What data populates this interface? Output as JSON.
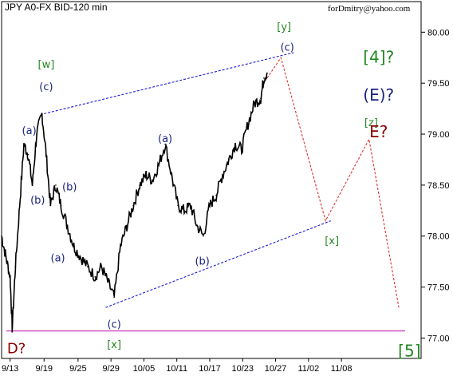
{
  "chart_data": {
    "type": "line",
    "title": "JPY A0-FX BID-120 min",
    "watermark": "forDmitry@yahoo.com",
    "ylim": [
      76.8,
      80.3
    ],
    "y_ticks": [
      "80.00",
      "79.50",
      "79.00",
      "78.50",
      "78.00",
      "77.50",
      "77.00"
    ],
    "y_tick_values": [
      80.0,
      79.5,
      79.0,
      78.5,
      78.0,
      77.5,
      77.0
    ],
    "x_tick_labels": [
      "9/13",
      "9/19",
      "9/25",
      "9/29",
      "10/05",
      "10/11",
      "10/17",
      "10/23",
      "10/27",
      "11/02",
      "11/08"
    ],
    "grid": false,
    "series": [
      {
        "color": "#000000",
        "points": [
          [
            0,
            78.0
          ],
          [
            0.4,
            77.8
          ],
          [
            0.8,
            77.6
          ],
          [
            1.0,
            77.1
          ],
          [
            1.3,
            77.7
          ],
          [
            1.7,
            78.3
          ],
          [
            2.1,
            78.9
          ],
          [
            2.5,
            78.8
          ],
          [
            2.9,
            78.5
          ],
          [
            3.3,
            79.0
          ],
          [
            3.8,
            79.2
          ],
          [
            4.2,
            78.8
          ],
          [
            4.6,
            78.3
          ],
          [
            5.1,
            78.5
          ],
          [
            5.6,
            78.3
          ],
          [
            6.2,
            78.1
          ],
          [
            6.8,
            77.9
          ],
          [
            7.4,
            77.8
          ],
          [
            8.1,
            77.7
          ],
          [
            8.8,
            77.6
          ],
          [
            9.4,
            77.7
          ],
          [
            10.0,
            77.55
          ],
          [
            10.6,
            77.4
          ],
          [
            11.2,
            77.9
          ],
          [
            11.8,
            78.1
          ],
          [
            12.4,
            78.3
          ],
          [
            13.0,
            78.5
          ],
          [
            13.6,
            78.6
          ],
          [
            14.2,
            78.55
          ],
          [
            14.8,
            78.7
          ],
          [
            15.4,
            78.9
          ],
          [
            16.0,
            78.6
          ],
          [
            16.6,
            78.3
          ],
          [
            17.2,
            78.25
          ],
          [
            17.8,
            78.3
          ],
          [
            18.4,
            78.1
          ],
          [
            19.0,
            78.0
          ],
          [
            19.6,
            78.3
          ],
          [
            20.2,
            78.4
          ],
          [
            20.8,
            78.6
          ],
          [
            21.4,
            78.75
          ],
          [
            22.0,
            78.9
          ],
          [
            22.6,
            78.85
          ],
          [
            23.2,
            79.1
          ],
          [
            23.8,
            79.3
          ],
          [
            24.4,
            79.35
          ],
          [
            24.7,
            79.55
          ],
          [
            25.0,
            79.6
          ]
        ]
      }
    ],
    "channel_upper": {
      "color": "#1a1ad6",
      "points": [
        [
          4.0,
          79.2
        ],
        [
          27.5,
          79.8
        ]
      ]
    },
    "channel_lower": {
      "color": "#1a1ad6",
      "points": [
        [
          9.8,
          77.3
        ],
        [
          31.0,
          78.15
        ]
      ]
    },
    "horizontal_line": {
      "color": "#cc2fb8",
      "value": 77.07
    },
    "forecast": {
      "color": "#e03030",
      "points": [
        [
          25.0,
          79.55
        ],
        [
          26.3,
          79.75
        ],
        [
          30.5,
          78.15
        ],
        [
          34.6,
          78.95
        ],
        [
          37.4,
          77.3
        ]
      ]
    },
    "annotations": [
      {
        "text": "[w]",
        "color": "#228822",
        "x": 4.2,
        "y": 79.65
      },
      {
        "text": "(c)",
        "color": "#1a237e",
        "x": 4.2,
        "y": 79.43
      },
      {
        "text": "(a)",
        "color": "#1a237e",
        "x": 2.6,
        "y": 79.0
      },
      {
        "text": "(b)",
        "color": "#1a237e",
        "x": 3.4,
        "y": 78.32
      },
      {
        "text": "(b)",
        "color": "#1a237e",
        "x": 6.4,
        "y": 78.45
      },
      {
        "text": "(a)",
        "color": "#1a237e",
        "x": 5.3,
        "y": 77.75
      },
      {
        "text": "(c)",
        "color": "#1a237e",
        "x": 10.6,
        "y": 77.1
      },
      {
        "text": "[x]",
        "color": "#228822",
        "x": 10.6,
        "y": 76.9
      },
      {
        "text": "(a)",
        "color": "#1a237e",
        "x": 15.4,
        "y": 78.92
      },
      {
        "text": "(b)",
        "color": "#1a237e",
        "x": 18.9,
        "y": 77.72
      },
      {
        "text": "[y]",
        "color": "#228822",
        "x": 26.6,
        "y": 80.02
      },
      {
        "text": "(c)",
        "color": "#1a237e",
        "x": 26.9,
        "y": 79.82
      },
      {
        "text": "[x]",
        "color": "#228822",
        "x": 31.1,
        "y": 77.92
      },
      {
        "text": "[z]",
        "color": "#228822",
        "x": 34.8,
        "y": 79.08
      },
      {
        "text": "[4]?",
        "color": "#228822",
        "x": 35.5,
        "y": 79.7,
        "size": 20
      },
      {
        "text": "(E)?",
        "color": "#1a237e",
        "x": 35.5,
        "y": 79.33,
        "size": 20
      },
      {
        "text": "E?",
        "color": "#8b0000",
        "x": 35.5,
        "y": 78.97,
        "size": 20
      },
      {
        "text": "D?",
        "color": "#8b0000",
        "x": 1.4,
        "y": 76.85,
        "size": 18
      },
      {
        "text": "[5]",
        "color": "#228822",
        "x": 38.4,
        "y": 76.82,
        "size": 20
      }
    ],
    "x_tick_positions": [
      0.8,
      4.0,
      7.2,
      10.3,
      13.4,
      16.5,
      19.6,
      22.7,
      25.8,
      28.9,
      32.0
    ],
    "x_domain": [
      0,
      39.5
    ]
  }
}
